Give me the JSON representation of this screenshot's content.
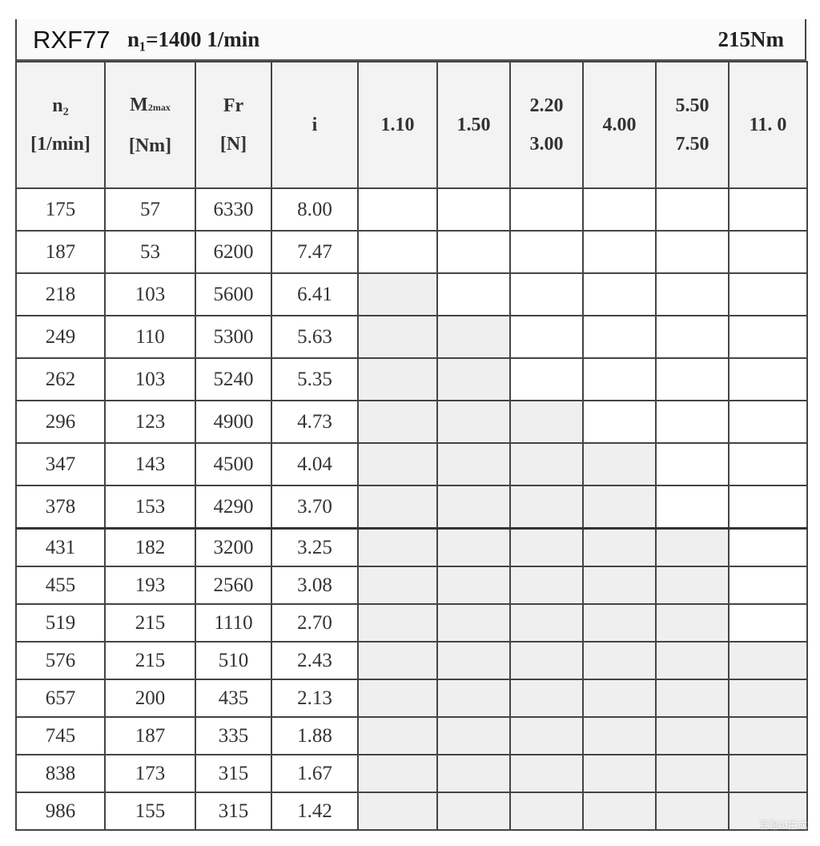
{
  "title": {
    "model": "RXF77",
    "input_speed": "n₁=1400 1/min",
    "max_torque": "215Nm"
  },
  "headers": {
    "n2": [
      "n₂",
      "[1/min]"
    ],
    "m2max": [
      "M",
      "2max",
      "[Nm]"
    ],
    "fr": [
      "Fr",
      "[N]"
    ],
    "i": "i",
    "service_factors": [
      [
        "1.10"
      ],
      [
        "1.50"
      ],
      [
        "2.20",
        "3.00"
      ],
      [
        "4.00"
      ],
      [
        "5.50",
        "7.50"
      ],
      [
        "11. 0"
      ]
    ]
  },
  "rows": [
    {
      "n2": "175",
      "m2max": "57",
      "fr": "6330",
      "i": "8.00",
      "shaded": 0
    },
    {
      "n2": "187",
      "m2max": "53",
      "fr": "6200",
      "i": "7.47",
      "shaded": 0
    },
    {
      "n2": "218",
      "m2max": "103",
      "fr": "5600",
      "i": "6.41",
      "shaded": 1
    },
    {
      "n2": "249",
      "m2max": "110",
      "fr": "5300",
      "i": "5.63",
      "shaded": 2
    },
    {
      "n2": "262",
      "m2max": "103",
      "fr": "5240",
      "i": "5.35",
      "shaded": 2
    },
    {
      "n2": "296",
      "m2max": "123",
      "fr": "4900",
      "i": "4.73",
      "shaded": 3
    },
    {
      "n2": "347",
      "m2max": "143",
      "fr": "4500",
      "i": "4.04",
      "shaded": 4
    },
    {
      "n2": "378",
      "m2max": "153",
      "fr": "4290",
      "i": "3.70",
      "shaded": 4
    },
    {
      "n2": "431",
      "m2max": "182",
      "fr": "3200",
      "i": "3.25",
      "shaded": 5
    },
    {
      "n2": "455",
      "m2max": "193",
      "fr": "2560",
      "i": "3.08",
      "shaded": 5
    },
    {
      "n2": "519",
      "m2max": "215",
      "fr": "1110",
      "i": "2.70",
      "shaded": 5
    },
    {
      "n2": "576",
      "m2max": "215",
      "fr": "510",
      "i": "2.43",
      "shaded": 6
    },
    {
      "n2": "657",
      "m2max": "200",
      "fr": "435",
      "i": "2.13",
      "shaded": 6
    },
    {
      "n2": "745",
      "m2max": "187",
      "fr": "335",
      "i": "1.88",
      "shaded": 6
    },
    {
      "n2": "838",
      "m2max": "173",
      "fr": "315",
      "i": "1.67",
      "shaded": 6
    },
    {
      "n2": "986",
      "m2max": "155",
      "fr": "315",
      "i": "1.42",
      "shaded": 6
    }
  ],
  "colors": {
    "shaded_cell": "#efefef",
    "grid": "#444444"
  },
  "watermark": "豆包AI生成"
}
